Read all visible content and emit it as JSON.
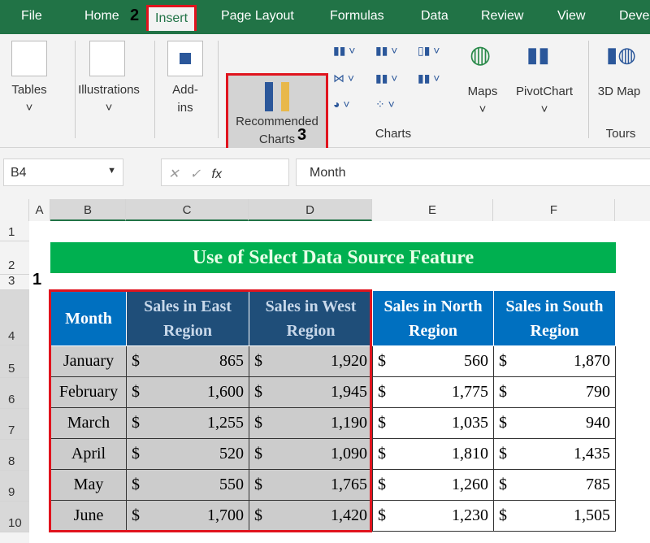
{
  "ribbon_tabs": [
    "File",
    "Home",
    "Insert",
    "Page Layout",
    "Formulas",
    "Data",
    "Review",
    "View",
    "Deve"
  ],
  "active_tab": "Insert",
  "steps": [
    "1",
    "2",
    "3"
  ],
  "ribbon": {
    "tables": "Tables",
    "illustrations": "Illustrations",
    "addins": "Add-\nins",
    "recommended": "Recommended Charts",
    "maps": "Maps",
    "pivotchart": "PivotChart",
    "map3d": "3D Map",
    "charts_group": "Charts",
    "tours_group": "Tours"
  },
  "formula_bar": {
    "name_box": "B4",
    "fx": "fx",
    "value": "Month"
  },
  "columns": [
    "A",
    "B",
    "C",
    "D",
    "E",
    "F"
  ],
  "rows": [
    "1",
    "2",
    "3",
    "4",
    "5",
    "6",
    "7",
    "8",
    "9",
    "10"
  ],
  "sheet_title": "Use of Select Data Source Feature",
  "table": {
    "headers": [
      "Month",
      "Sales in East Region",
      "Sales in West Region",
      "Sales in North Region",
      "Sales in South Region"
    ],
    "currency": "$",
    "rows": [
      [
        "January",
        "865",
        "1,920",
        "560",
        "1,870"
      ],
      [
        "February",
        "1,600",
        "1,945",
        "1,775",
        "790"
      ],
      [
        "March",
        "1,255",
        "1,190",
        "1,035",
        "940"
      ],
      [
        "April",
        "520",
        "1,090",
        "1,810",
        "1,435"
      ],
      [
        "May",
        "550",
        "1,765",
        "1,260",
        "785"
      ],
      [
        "June",
        "1,700",
        "1,420",
        "1,230",
        "1,505"
      ]
    ]
  },
  "colors": {
    "excel_green": "#217346",
    "title_green": "#00b050",
    "header_blue": "#0070c0",
    "highlight_red": "#e0141e"
  }
}
